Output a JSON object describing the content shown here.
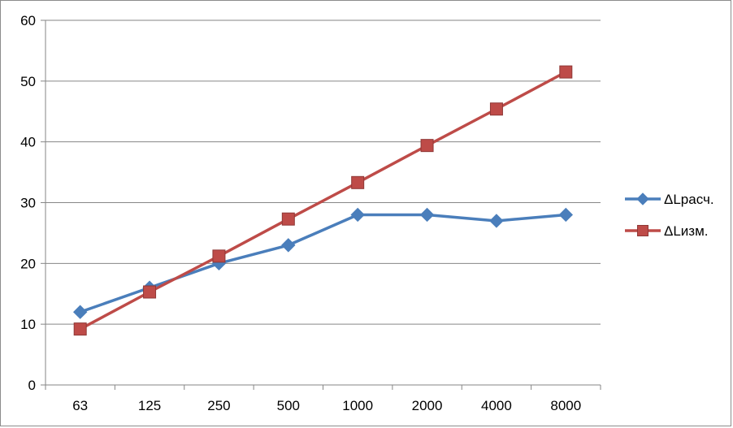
{
  "chart_data": {
    "type": "line",
    "categories": [
      "63",
      "125",
      "250",
      "500",
      "1000",
      "2000",
      "4000",
      "8000"
    ],
    "ylim": [
      0,
      60
    ],
    "yticks": [
      0,
      10,
      20,
      30,
      40,
      50,
      60
    ],
    "grid": true,
    "legend": "right",
    "series": [
      {
        "name": "ΔLрасч.",
        "color": "#4a7ebb",
        "marker": "diamond",
        "values": [
          12,
          16,
          20,
          23,
          28,
          28,
          27,
          28
        ]
      },
      {
        "name": "ΔLизм.",
        "color": "#be4b48",
        "marker": "square",
        "values": [
          9.2,
          15.3,
          21.2,
          27.3,
          33.3,
          39.4,
          45.4,
          51.5
        ]
      }
    ]
  }
}
